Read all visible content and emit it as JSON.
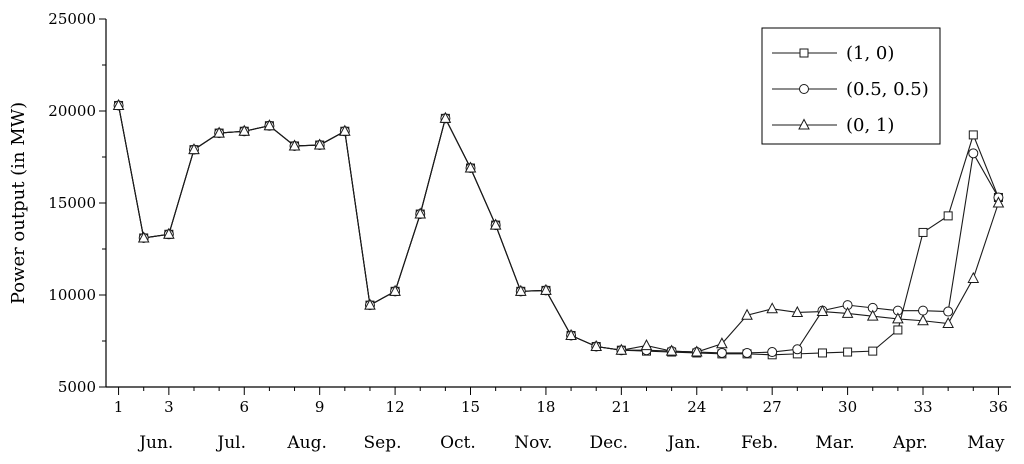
{
  "chart_data": {
    "type": "line",
    "title": "",
    "xlabel": "",
    "ylabel": "Power output (in MW)",
    "xlim": [
      0.5,
      36.5
    ],
    "ylim": [
      5000,
      25000
    ],
    "x_ticks": [
      1,
      3,
      6,
      9,
      12,
      15,
      18,
      21,
      24,
      27,
      30,
      33,
      36
    ],
    "x_minor_ticks": [
      2,
      4,
      5,
      7,
      8,
      10,
      11,
      13,
      14,
      16,
      17,
      19,
      20,
      22,
      23,
      25,
      26,
      28,
      29,
      31,
      32,
      34,
      35
    ],
    "y_ticks": [
      5000,
      10000,
      15000,
      20000,
      25000
    ],
    "months": [
      {
        "label": "Jun.",
        "x": 2.5
      },
      {
        "label": "Jul.",
        "x": 5.5
      },
      {
        "label": "Aug.",
        "x": 8.5
      },
      {
        "label": "Sep.",
        "x": 11.5
      },
      {
        "label": "Oct.",
        "x": 14.5
      },
      {
        "label": "Nov.",
        "x": 17.5
      },
      {
        "label": "Dec.",
        "x": 20.5
      },
      {
        "label": "Jan.",
        "x": 23.5
      },
      {
        "label": "Feb.",
        "x": 26.5
      },
      {
        "label": "Mar.",
        "x": 29.5
      },
      {
        "label": "Apr.",
        "x": 32.5
      },
      {
        "label": "May",
        "x": 35.5
      }
    ],
    "grid": false,
    "legend_position": "top-right",
    "x": [
      1,
      2,
      3,
      4,
      5,
      6,
      7,
      8,
      9,
      10,
      11,
      12,
      13,
      14,
      15,
      16,
      17,
      18,
      19,
      20,
      21,
      22,
      23,
      24,
      25,
      26,
      27,
      28,
      29,
      30,
      31,
      32,
      33,
      34,
      35,
      36
    ],
    "series": [
      {
        "name": "(1, 0)",
        "marker": "square",
        "values": [
          20300,
          13100,
          13300,
          17900,
          18800,
          18900,
          19200,
          18100,
          18150,
          18900,
          9450,
          10200,
          14400,
          19600,
          16900,
          13800,
          10200,
          10250,
          7800,
          7200,
          7000,
          6950,
          6900,
          6850,
          6800,
          6800,
          6750,
          6800,
          6850,
          6900,
          6950,
          8100,
          13400,
          14300,
          18700,
          15300
        ]
      },
      {
        "name": "(0.5, 0.5)",
        "marker": "circle",
        "values": [
          20300,
          13100,
          13300,
          17900,
          18800,
          18900,
          19200,
          18100,
          18150,
          18900,
          9450,
          10200,
          14400,
          19600,
          16900,
          13800,
          10200,
          10250,
          7800,
          7200,
          7000,
          7000,
          6950,
          6900,
          6850,
          6850,
          6900,
          7050,
          9150,
          9450,
          9300,
          9150,
          9150,
          9100,
          17700,
          15300
        ]
      },
      {
        "name": "(0, 1)",
        "marker": "triangle",
        "values": [
          20300,
          13100,
          13300,
          17900,
          18800,
          18900,
          19200,
          18100,
          18150,
          18900,
          9450,
          10200,
          14400,
          19600,
          16900,
          13800,
          10200,
          10250,
          7800,
          7200,
          7000,
          7250,
          6950,
          6900,
          7350,
          8900,
          9250,
          9050,
          9100,
          9000,
          8850,
          8700,
          8600,
          8450,
          10900,
          15000
        ]
      }
    ]
  }
}
